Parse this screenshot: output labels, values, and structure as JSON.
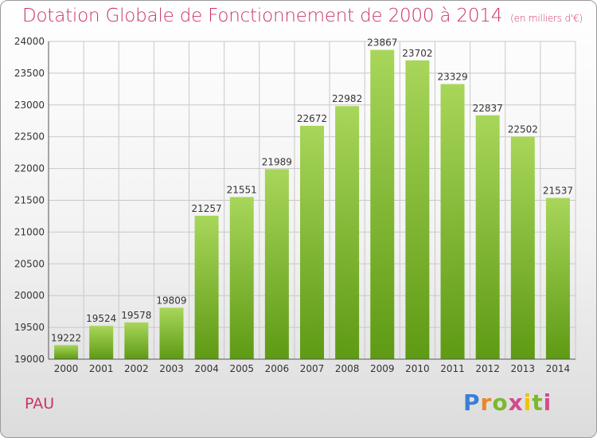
{
  "title": "Dotation Globale de Fonctionnement de 2000 à 2014",
  "subtitle": "(en milliers d'€)",
  "place": "PAU",
  "brand": "Proxiti",
  "colors": {
    "title": "#cc3366",
    "bar_light": "#a8d65a",
    "bar_dark": "#5e9a14",
    "grid": "#c8c8c8",
    "axis_text": "#333333"
  },
  "chart_data": {
    "type": "bar",
    "title": "Dotation Globale de Fonctionnement de 2000 à 2014",
    "subtitle": "(en milliers d'€)",
    "categories": [
      "2000",
      "2001",
      "2002",
      "2003",
      "2004",
      "2005",
      "2006",
      "2007",
      "2008",
      "2009",
      "2010",
      "2011",
      "2012",
      "2013",
      "2014"
    ],
    "values": [
      19222,
      19524,
      19578,
      19809,
      21257,
      21551,
      21989,
      22672,
      22982,
      23867,
      23702,
      23329,
      22837,
      22502,
      21537
    ],
    "ylim": [
      19000,
      24000
    ],
    "yticks": [
      19000,
      19500,
      20000,
      20500,
      21000,
      21500,
      22000,
      22500,
      23000,
      23500,
      24000
    ],
    "grid": true,
    "data_labels": true
  }
}
